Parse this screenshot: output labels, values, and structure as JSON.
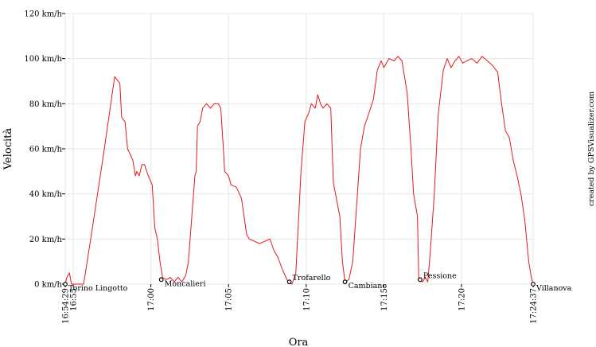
{
  "chart_data": {
    "type": "line",
    "title": "",
    "xlabel": "Ora",
    "ylabel": "Velocità",
    "credit": "created by GPSVisualizer.com",
    "x_unit": "minutes after 16:54:29",
    "xlim": [
      "16:54:29",
      "17:24:37"
    ],
    "ylim": [
      0,
      120
    ],
    "y_ticks": [
      "0 km/h",
      "20 km/h",
      "40 km/h",
      "60 km/h",
      "80 km/h",
      "100 km/h",
      "120 km/h"
    ],
    "y_tick_values": [
      0,
      20,
      40,
      60,
      80,
      100,
      120
    ],
    "x_ticks": [
      "16:54:29",
      "16:55",
      "17:00",
      "17:05",
      "17:10",
      "17:15",
      "17:20",
      "17:24:37"
    ],
    "x_tick_values": [
      "16:54:29",
      "16:55",
      "17:00",
      "17:05",
      "17:10",
      "17:15",
      "17:20",
      "17:24:37"
    ],
    "grid": true,
    "line_color": "#e31a1c",
    "series": [
      {
        "points": [
          [
            "16:54:29",
            0
          ],
          [
            "16:54:35",
            3
          ],
          [
            "16:54:45",
            5
          ],
          [
            "16:54:53",
            0
          ],
          [
            "16:55:40",
            0
          ],
          [
            "16:56:10",
            22
          ],
          [
            "16:57:00",
            60
          ],
          [
            "16:57:40",
            92
          ],
          [
            "16:58:00",
            89
          ],
          [
            "16:58:07",
            74
          ],
          [
            "16:58:20",
            72
          ],
          [
            "16:58:30",
            60
          ],
          [
            "16:58:50",
            55
          ],
          [
            "16:59:00",
            48
          ],
          [
            "16:59:05",
            50
          ],
          [
            "16:59:15",
            48
          ],
          [
            "16:59:25",
            53
          ],
          [
            "16:59:35",
            53
          ],
          [
            "16:59:50",
            48
          ],
          [
            "17:00:05",
            44
          ],
          [
            "17:00:15",
            25
          ],
          [
            "17:00:25",
            20
          ],
          [
            "17:00:35",
            10
          ],
          [
            "17:00:45",
            3
          ],
          [
            "17:01:00",
            2
          ],
          [
            "17:01:15",
            3
          ],
          [
            "17:01:30",
            1
          ],
          [
            "17:01:45",
            3
          ],
          [
            "17:02:00",
            1
          ],
          [
            "17:02:15",
            4
          ],
          [
            "17:02:25",
            10
          ],
          [
            "17:02:40",
            33
          ],
          [
            "17:02:50",
            48
          ],
          [
            "17:02:55",
            50
          ],
          [
            "17:03:00",
            70
          ],
          [
            "17:03:10",
            72
          ],
          [
            "17:03:20",
            78
          ],
          [
            "17:03:35",
            80
          ],
          [
            "17:03:50",
            78
          ],
          [
            "17:04:05",
            80
          ],
          [
            "17:04:20",
            80
          ],
          [
            "17:04:30",
            78
          ],
          [
            "17:04:40",
            60
          ],
          [
            "17:04:45",
            50
          ],
          [
            "17:05:00",
            48
          ],
          [
            "17:05:10",
            44
          ],
          [
            "17:05:30",
            43
          ],
          [
            "17:05:50",
            38
          ],
          [
            "17:06:10",
            22
          ],
          [
            "17:06:20",
            20
          ],
          [
            "17:06:40",
            19
          ],
          [
            "17:07:00",
            18
          ],
          [
            "17:07:20",
            19
          ],
          [
            "17:07:40",
            20
          ],
          [
            "17:07:55",
            15
          ],
          [
            "17:08:10",
            12
          ],
          [
            "17:08:30",
            6
          ],
          [
            "17:08:50",
            1
          ],
          [
            "17:09:05",
            0
          ],
          [
            "17:09:20",
            5
          ],
          [
            "17:09:40",
            50
          ],
          [
            "17:09:55",
            72
          ],
          [
            "17:10:10",
            76
          ],
          [
            "17:10:20",
            80
          ],
          [
            "17:10:35",
            78
          ],
          [
            "17:10:45",
            84
          ],
          [
            "17:10:55",
            80
          ],
          [
            "17:11:05",
            78
          ],
          [
            "17:11:20",
            80
          ],
          [
            "17:11:35",
            78
          ],
          [
            "17:11:45",
            45
          ],
          [
            "17:12:00",
            36
          ],
          [
            "17:12:10",
            30
          ],
          [
            "17:12:20",
            10
          ],
          [
            "17:12:30",
            1
          ],
          [
            "17:12:45",
            2
          ],
          [
            "17:13:00",
            10
          ],
          [
            "17:13:15",
            35
          ],
          [
            "17:13:30",
            60
          ],
          [
            "17:13:45",
            70
          ],
          [
            "17:14:00",
            75
          ],
          [
            "17:14:20",
            82
          ],
          [
            "17:14:35",
            95
          ],
          [
            "17:14:50",
            99
          ],
          [
            "17:15:00",
            96
          ],
          [
            "17:15:20",
            100
          ],
          [
            "17:15:40",
            99
          ],
          [
            "17:15:55",
            101
          ],
          [
            "17:16:10",
            99
          ],
          [
            "17:16:30",
            85
          ],
          [
            "17:16:45",
            60
          ],
          [
            "17:16:55",
            40
          ],
          [
            "17:17:10",
            30
          ],
          [
            "17:17:15",
            2
          ],
          [
            "17:17:30",
            1
          ],
          [
            "17:17:40",
            3
          ],
          [
            "17:17:50",
            1
          ],
          [
            "17:18:00",
            15
          ],
          [
            "17:18:15",
            40
          ],
          [
            "17:18:30",
            75
          ],
          [
            "17:18:50",
            95
          ],
          [
            "17:19:05",
            100
          ],
          [
            "17:19:20",
            96
          ],
          [
            "17:19:35",
            99
          ],
          [
            "17:19:50",
            101
          ],
          [
            "17:20:05",
            98
          ],
          [
            "17:20:20",
            99
          ],
          [
            "17:20:40",
            100
          ],
          [
            "17:21:00",
            98
          ],
          [
            "17:21:20",
            101
          ],
          [
            "17:21:40",
            99
          ],
          [
            "17:22:00",
            97
          ],
          [
            "17:22:20",
            94
          ],
          [
            "17:22:35",
            80
          ],
          [
            "17:22:50",
            68
          ],
          [
            "17:23:05",
            65
          ],
          [
            "17:23:20",
            55
          ],
          [
            "17:23:35",
            48
          ],
          [
            "17:23:50",
            40
          ],
          [
            "17:24:05",
            28
          ],
          [
            "17:24:20",
            10
          ],
          [
            "17:24:30",
            3
          ],
          [
            "17:24:37",
            0
          ]
        ]
      }
    ],
    "waypoints": [
      {
        "name": "Torino Lingotto",
        "x": "16:54:29",
        "y": 0
      },
      {
        "name": "Moncalieri",
        "x": "17:00:40",
        "y": 2
      },
      {
        "name": "Trofarello",
        "x": "17:08:55",
        "y": 1
      },
      {
        "name": "Cambiano",
        "x": "17:12:30",
        "y": 1
      },
      {
        "name": "Pessione",
        "x": "17:17:20",
        "y": 2
      },
      {
        "name": "Villanova",
        "x": "17:24:37",
        "y": 0
      }
    ]
  }
}
